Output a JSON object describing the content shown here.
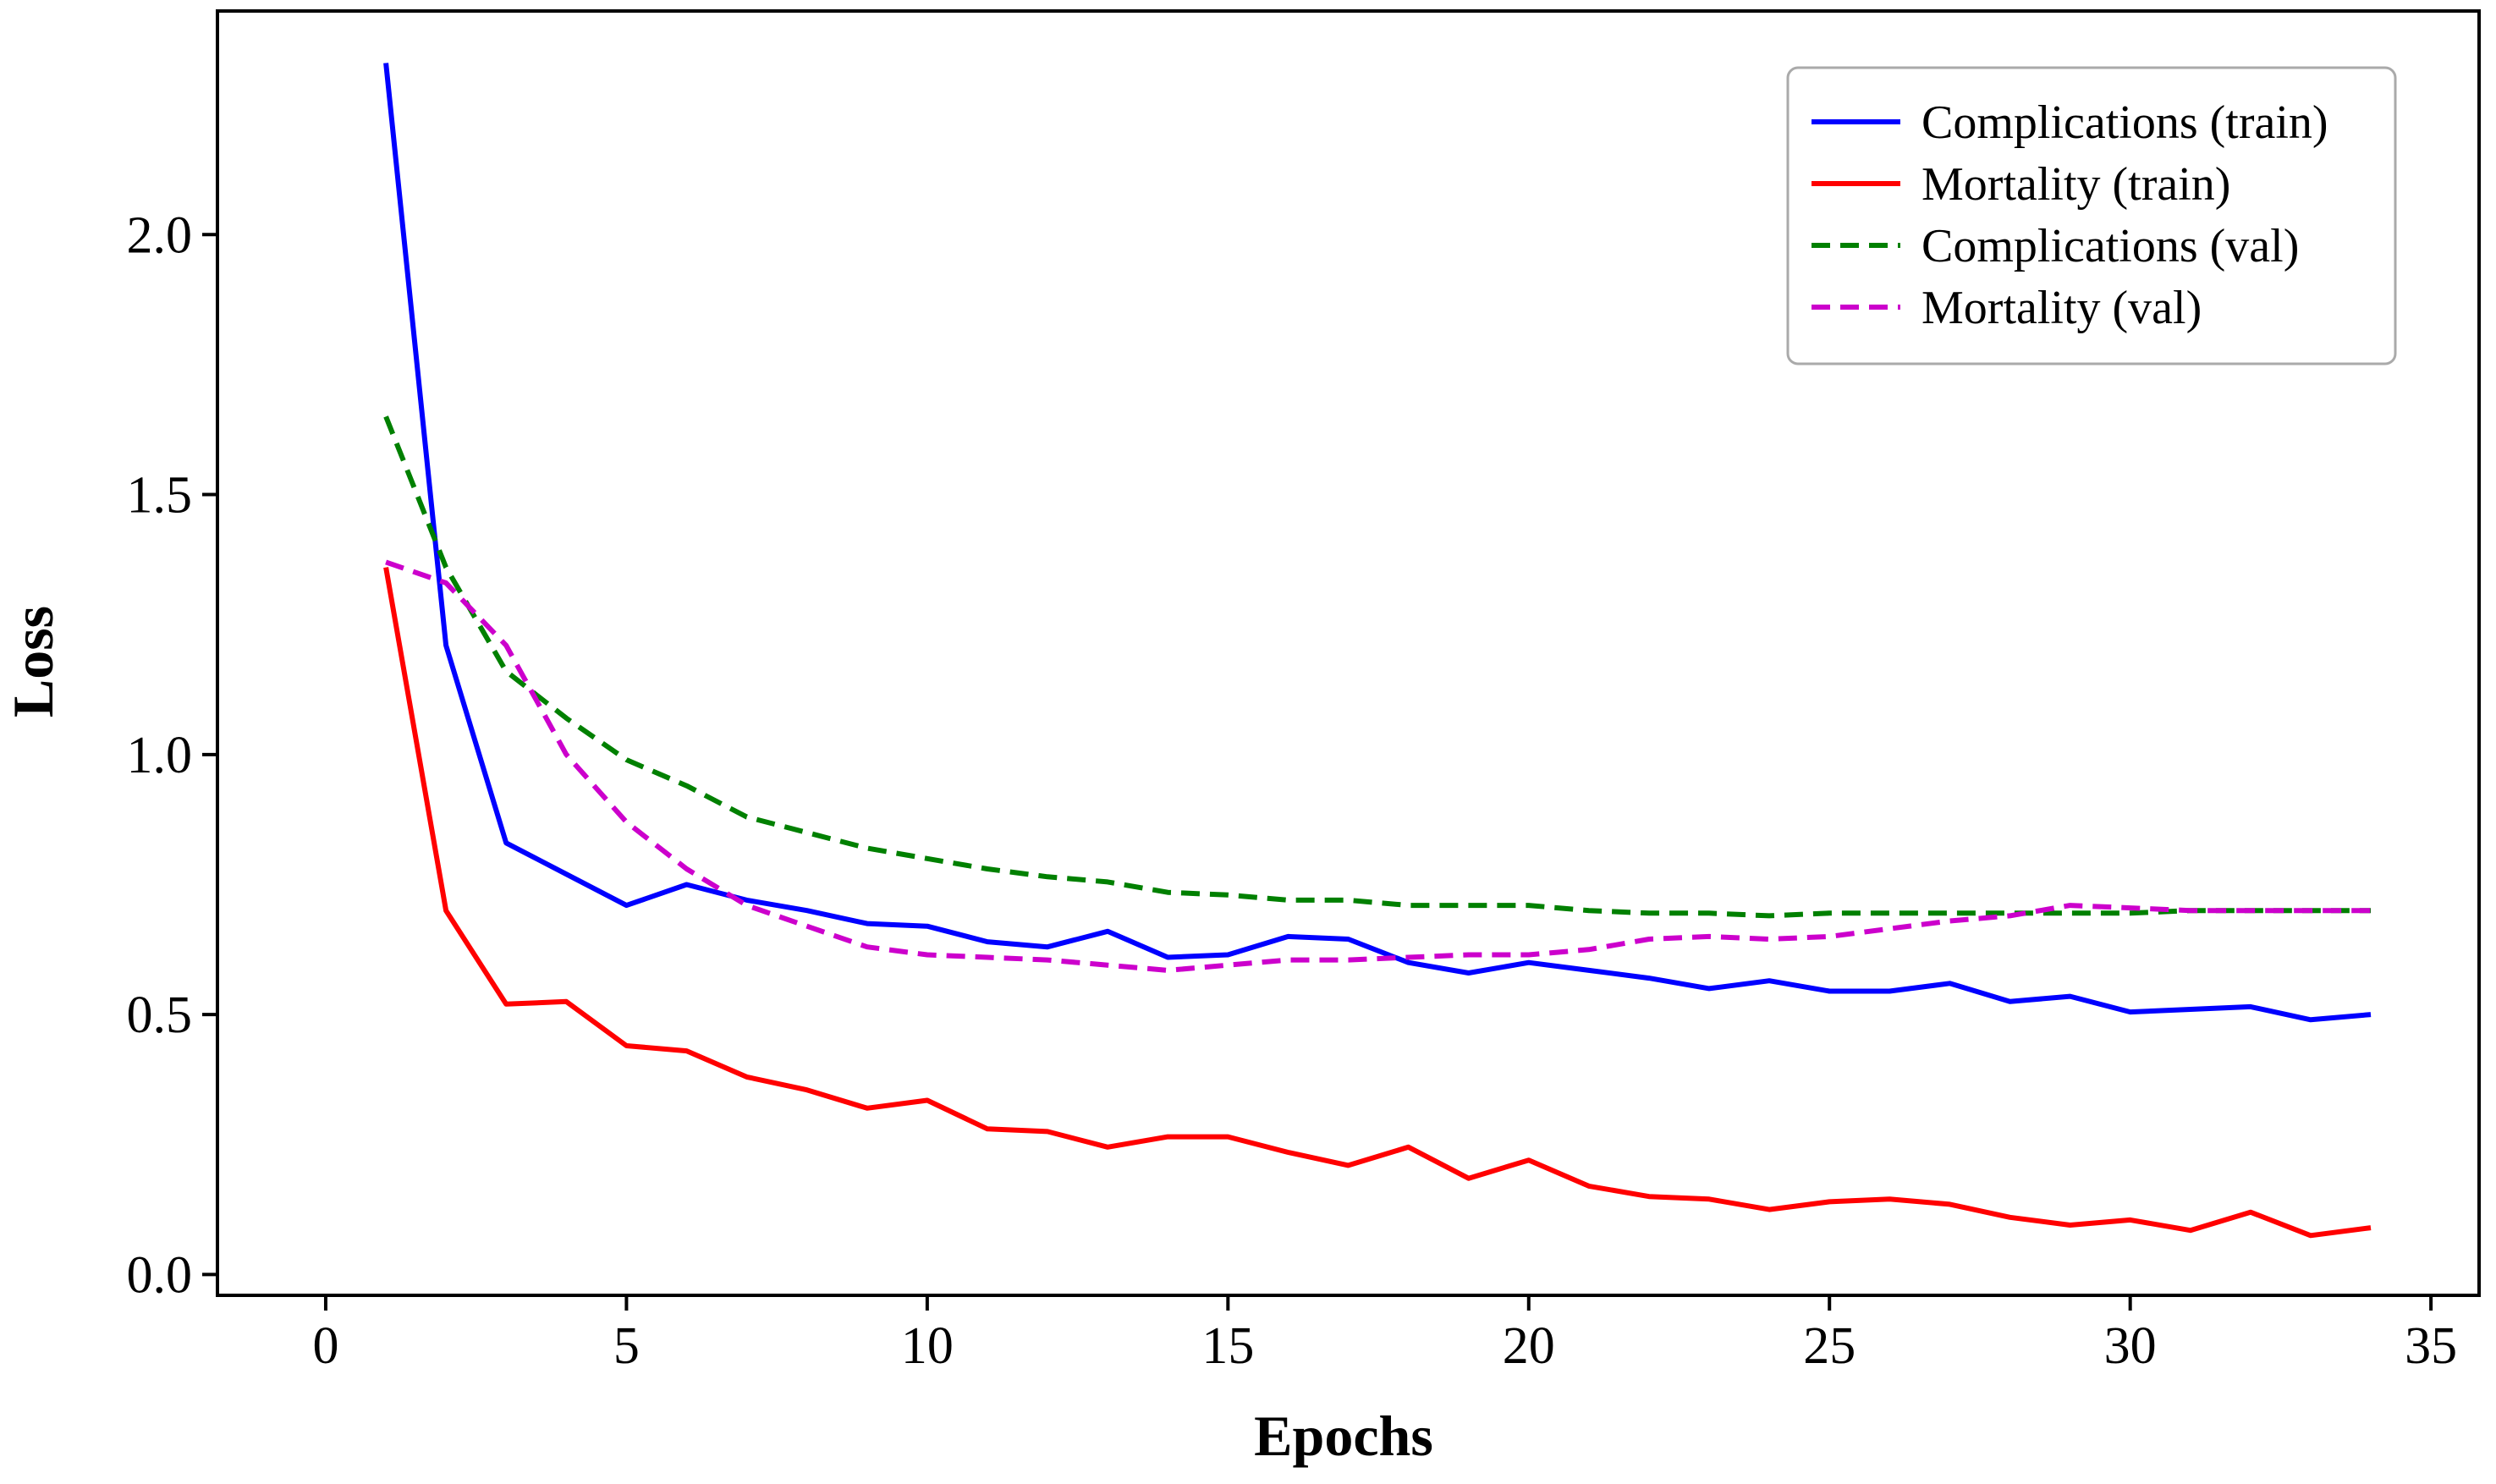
{
  "chart_data": {
    "type": "line",
    "title": "",
    "xlabel": "Epochs",
    "ylabel": "Loss",
    "xlim": [
      -1.8,
      35.8
    ],
    "ylim": [
      -0.04,
      2.43
    ],
    "xticks": [
      0,
      5,
      10,
      15,
      20,
      25,
      30,
      35
    ],
    "xtick_labels": [
      "0",
      "5",
      "10",
      "15",
      "20",
      "25",
      "30",
      "35"
    ],
    "yticks": [
      0.0,
      0.5,
      1.0,
      1.5,
      2.0
    ],
    "ytick_labels": [
      "0.0",
      "0.5",
      "1.0",
      "1.5",
      "2.0"
    ],
    "grid": false,
    "legend_position": "top-right",
    "x": [
      1,
      2,
      3,
      4,
      5,
      6,
      7,
      8,
      9,
      10,
      11,
      12,
      13,
      14,
      15,
      16,
      17,
      18,
      19,
      20,
      21,
      22,
      23,
      24,
      25,
      26,
      27,
      28,
      29,
      30,
      31,
      32,
      33,
      34
    ],
    "series": [
      {
        "name": "Complications (train)",
        "color": "#0000ff",
        "style": "solid",
        "values": [
          2.33,
          1.21,
          0.83,
          0.77,
          0.71,
          0.75,
          0.72,
          0.7,
          0.675,
          0.67,
          0.64,
          0.63,
          0.66,
          0.61,
          0.615,
          0.65,
          0.645,
          0.6,
          0.58,
          0.6,
          0.585,
          0.57,
          0.55,
          0.565,
          0.545,
          0.545,
          0.56,
          0.525,
          0.535,
          0.505,
          0.51,
          0.515,
          0.49,
          0.5
        ]
      },
      {
        "name": "Mortality (train)",
        "color": "#ff0000",
        "style": "solid",
        "values": [
          1.36,
          0.7,
          0.52,
          0.525,
          0.44,
          0.43,
          0.38,
          0.355,
          0.32,
          0.335,
          0.28,
          0.275,
          0.245,
          0.265,
          0.265,
          0.235,
          0.21,
          0.245,
          0.185,
          0.22,
          0.17,
          0.15,
          0.145,
          0.125,
          0.14,
          0.145,
          0.135,
          0.11,
          0.095,
          0.105,
          0.085,
          0.12,
          0.075,
          0.09
        ]
      },
      {
        "name": "Complications (val)",
        "color": "#008000",
        "style": "dashed",
        "values": [
          1.65,
          1.36,
          1.16,
          1.07,
          0.99,
          0.94,
          0.88,
          0.85,
          0.82,
          0.8,
          0.78,
          0.765,
          0.755,
          0.735,
          0.73,
          0.72,
          0.72,
          0.71,
          0.71,
          0.71,
          0.7,
          0.695,
          0.695,
          0.69,
          0.695,
          0.695,
          0.695,
          0.695,
          0.695,
          0.695,
          0.7,
          0.7,
          0.7,
          0.7
        ]
      },
      {
        "name": "Mortality (val)",
        "color": "#cc00cc",
        "style": "dashed",
        "values": [
          1.37,
          1.33,
          1.21,
          1.0,
          0.87,
          0.78,
          0.71,
          0.67,
          0.63,
          0.615,
          0.61,
          0.605,
          0.595,
          0.585,
          0.595,
          0.605,
          0.605,
          0.61,
          0.615,
          0.615,
          0.625,
          0.645,
          0.65,
          0.645,
          0.65,
          0.665,
          0.68,
          0.69,
          0.71,
          0.705,
          0.7,
          0.7,
          0.7,
          0.7
        ]
      }
    ]
  }
}
